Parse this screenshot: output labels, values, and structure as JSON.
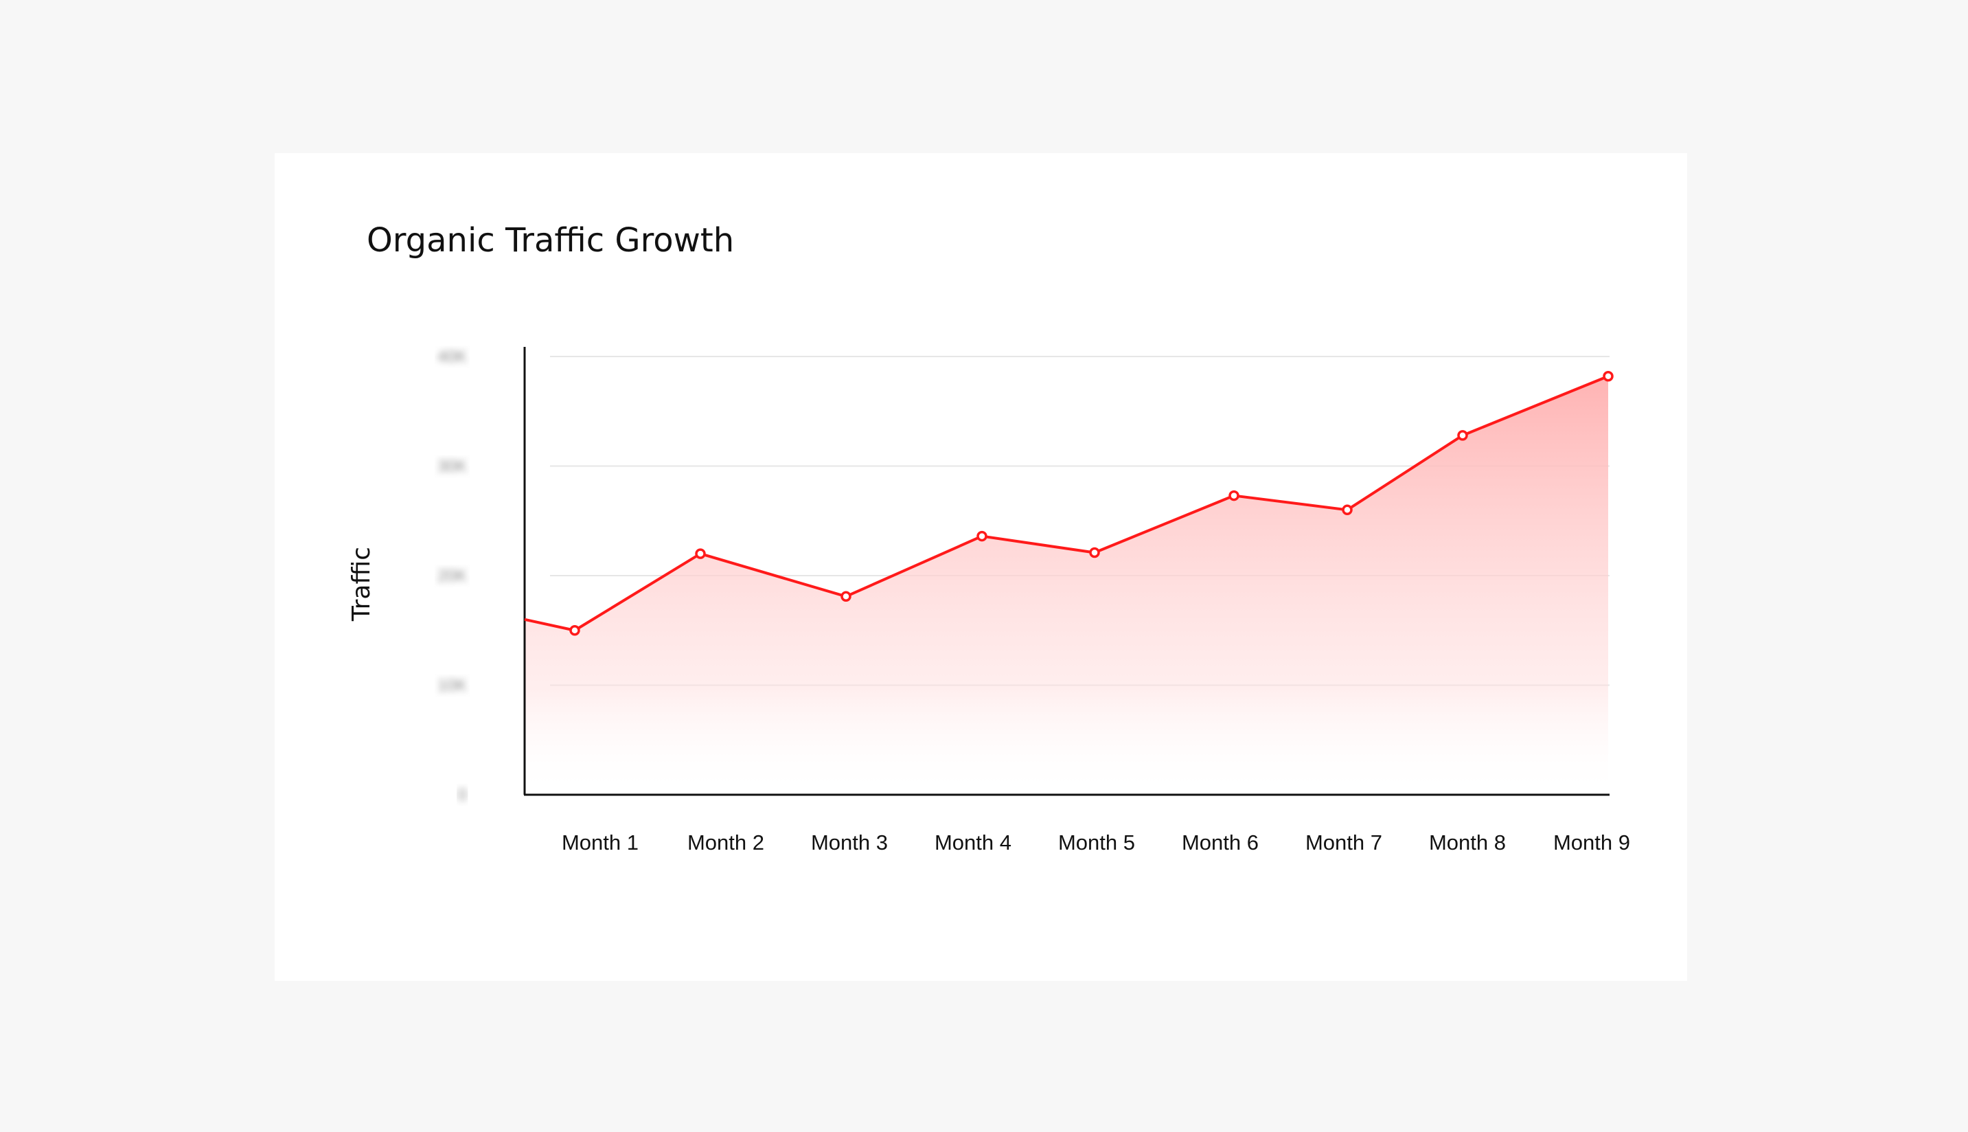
{
  "chart_data": {
    "type": "area",
    "title": "Organic Traffic Growth",
    "xlabel": "",
    "ylabel": "Traffic",
    "categories": [
      "Month 1",
      "Month 2",
      "Month 3",
      "Month 4",
      "Month 5",
      "Month 6",
      "Month 7",
      "Month 8",
      "Month 9"
    ],
    "series": [
      {
        "values": [
          15.0,
          22.0,
          18.1,
          23.6,
          22.1,
          27.3,
          26.0,
          32.8,
          38.2
        ]
      }
    ],
    "start_value": 16.0,
    "y_unit": "K",
    "ylim": [
      0,
      40
    ],
    "y_ticks": [
      "0",
      "10K",
      "20K",
      "30K",
      "40K"
    ],
    "y_tick_labels_blurred": true,
    "grid": true,
    "colors": {
      "line": "#ff1a1a",
      "fill": "#ffb3b3"
    }
  }
}
